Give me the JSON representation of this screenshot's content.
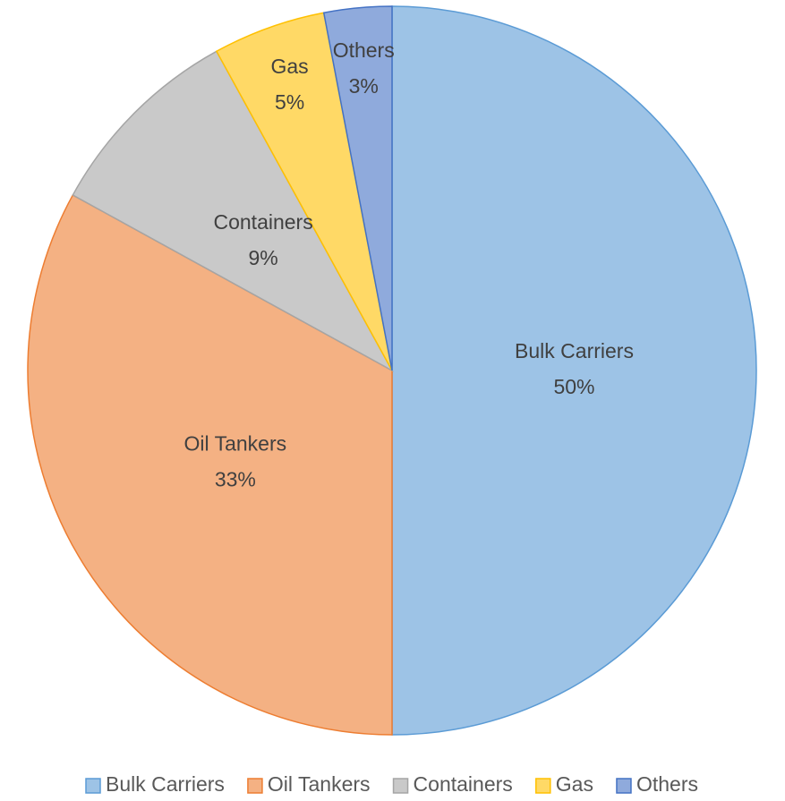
{
  "chart_data": {
    "type": "pie",
    "categories": [
      "Bulk Carriers",
      "Oil Tankers",
      "Containers",
      "Gas",
      "Others"
    ],
    "values": [
      50,
      33,
      9,
      5,
      3
    ],
    "value_labels": [
      "50%",
      "33%",
      "9%",
      "5%",
      "3%"
    ],
    "colors": [
      "#9dc3e6",
      "#f4b183",
      "#c9c9c9",
      "#ffd966",
      "#8faadc"
    ],
    "edge_colors": [
      "#5b9bd5",
      "#ed7d31",
      "#a5a5a5",
      "#ffc000",
      "#4472c4"
    ],
    "legend": "bottom"
  }
}
